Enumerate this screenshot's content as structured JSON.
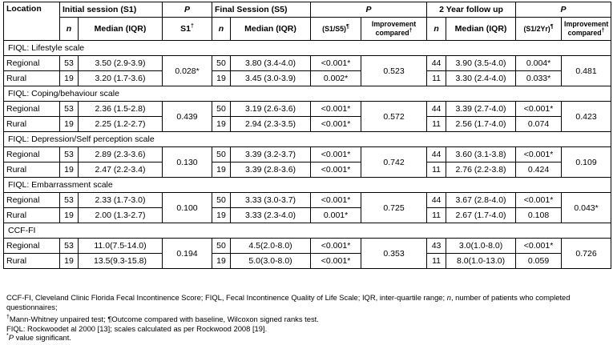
{
  "header": {
    "location": "Location",
    "s1": "Initial session (S1)",
    "p1": "P",
    "s5": "Final Session (S5)",
    "p2": "P",
    "fu": "2 Year follow up",
    "p3": "P",
    "n": "n",
    "median_iqr": "Median (IQR)",
    "s1_sup": "S1",
    "s1_sup_mark": "†",
    "s1s5": "(S1/S5)",
    "s1s5_mark": "¶",
    "improvement_line1": "Improvement",
    "improvement_line2": "compared",
    "improvement_mark": "†",
    "s12yr": "(S1/2Yr)",
    "s12yr_mark": "¶"
  },
  "sections": [
    {
      "title": "FIQL: Lifestyle scale",
      "p_s1": "0.028*",
      "p_improve_s5": "0.523",
      "p_improve_2yr": "0.481",
      "rows": [
        {
          "location": "Regional",
          "n1": "53",
          "m1": "3.50 (2.9-3.9)",
          "n5": "50",
          "m5": "3.80 (3.4-4.0)",
          "p5": "<0.001*",
          "n2": "44",
          "m2": "3.90 (3.5-4.0)",
          "p2": "0.004*"
        },
        {
          "location": "Rural",
          "n1": "19",
          "m1": "3.20 (1.7-3.6)",
          "n5": "19",
          "m5": "3.45 (3.0-3.9)",
          "p5": "0.002*",
          "n2": "11",
          "m2": "3.30 (2.4-4.0)",
          "p2": "0.033*"
        }
      ]
    },
    {
      "title": "FIQL: Coping/behaviour scale",
      "p_s1": "0.439",
      "p_improve_s5": "0.572",
      "p_improve_2yr": "0.423",
      "rows": [
        {
          "location": "Regional",
          "n1": "53",
          "m1": "2.36 (1.5-2.8)",
          "n5": "50",
          "m5": "3.19 (2.6-3.6)",
          "p5": "<0.001*",
          "n2": "44",
          "m2": "3.39 (2.7-4.0)",
          "p2": "<0.001*"
        },
        {
          "location": "Rural",
          "n1": "19",
          "m1": "2.25 (1.2-2.7)",
          "n5": "19",
          "m5": "2.94 (2.3-3.5)",
          "p5": "<0.001*",
          "n2": "11",
          "m2": "2.56 (1.7-4.0)",
          "p2": "0.074"
        }
      ]
    },
    {
      "title": "FIQL:  Depression/Self perception scale",
      "p_s1": "0.130",
      "p_improve_s5": "0.742",
      "p_improve_2yr": "0.109",
      "rows": [
        {
          "location": "Regional",
          "n1": "53",
          "m1": "2.89 (2.3-3.6)",
          "n5": "50",
          "m5": "3.39 (3.2-3.7)",
          "p5": "<0.001*",
          "n2": "44",
          "m2": "3.60 (3.1-3.8)",
          "p2": "<0.001*"
        },
        {
          "location": "Rural",
          "n1": "19",
          "m1": "2.47 (2.2-3.4)",
          "n5": "19",
          "m5": "3.39 (2.8-3.6)",
          "p5": "<0.001*",
          "n2": "11",
          "m2": "2.76 (2.2-3.8)",
          "p2": "0.424"
        }
      ]
    },
    {
      "title": "FIQL: Embarrassment scale",
      "p_s1": "0.100",
      "p_improve_s5": "0.725",
      "p_improve_2yr": "0.043*",
      "rows": [
        {
          "location": "Regional",
          "n1": "53",
          "m1": "2.33 (1.7-3.0)",
          "n5": "50",
          "m5": "3.33 (3.0-3.7)",
          "p5": "<0.001*",
          "n2": "44",
          "m2": "3.67 (2.8-4.0)",
          "p2": "<0.001*"
        },
        {
          "location": "Rural",
          "n1": "19",
          "m1": "2.00 (1.3-2.7)",
          "n5": "19",
          "m5": "3.33 (2.3-4.0)",
          "p5": "0.001*",
          "n2": "11",
          "m2": "2.67 (1.7-4.0)",
          "p2": "0.108"
        }
      ]
    },
    {
      "title": "CCF-FI",
      "p_s1": "0.194",
      "p_improve_s5": "0.353",
      "p_improve_2yr": "0.726",
      "rows": [
        {
          "location": "Regional",
          "n1": "53",
          "m1": "11.0(7.5-14.0)",
          "n5": "50",
          "m5": "4.5(2.0-8.0)",
          "p5": "<0.001*",
          "n2": "43",
          "m2": "3.0(1.0-8.0)",
          "p2": "<0.001*"
        },
        {
          "location": "Rural",
          "n1": "19",
          "m1": "13.5(9.3-15.8)",
          "n5": "19",
          "m5": "5.0(3.0-8.0)",
          "p5": "<0.001*",
          "n2": "11",
          "m2": "8.0(1.0-13.0)",
          "p2": "0.059"
        }
      ]
    }
  ],
  "footnotes": {
    "abbreviations_a": "CCF-FI, Cleveland Clinic Florida Fecal Incontinence Score; FIQL, Fecal Incontinence Quality of Life Scale; IQR, inter-quartile range; ",
    "abbreviations_n": "n",
    "abbreviations_b": ", number of patients who completed questionnaires;",
    "dagger_mark": "†",
    "dagger_text": "Mann-Whitney unpaired test; ¶Outcome compared with baseline, Wilcoxon signed ranks test.",
    "fiql_source": "FIQL: Rockwoodet al 2000 [13]; scales calculated as per Rockwood 2008 [19].",
    "star_mark": "*",
    "star_p": "P",
    "star_text": " value significant."
  }
}
